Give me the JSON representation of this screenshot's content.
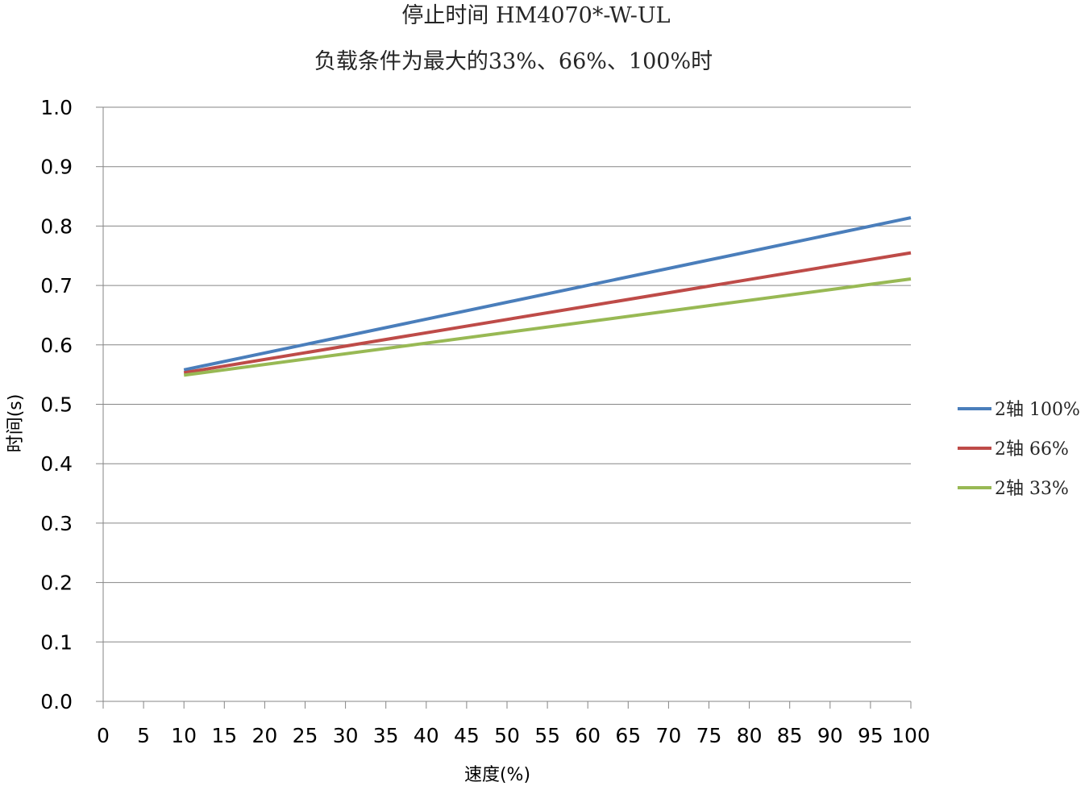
{
  "chart_data": {
    "type": "line",
    "title": "停止时间 HM4070*-W-UL",
    "subtitle": "负载条件为最大的33%、66%、100%时",
    "xlabel": "速度(%)",
    "ylabel": "时间(s)",
    "xlim": [
      0,
      100
    ],
    "ylim": [
      0.0,
      1.0
    ],
    "x_ticks": [
      "0",
      "5",
      "10",
      "15",
      "20",
      "25",
      "30",
      "35",
      "40",
      "45",
      "50",
      "55",
      "60",
      "65",
      "70",
      "75",
      "80",
      "85",
      "90",
      "95",
      "100"
    ],
    "y_ticks": [
      "0.0",
      "0.1",
      "0.2",
      "0.3",
      "0.4",
      "0.5",
      "0.6",
      "0.7",
      "0.8",
      "0.9",
      "1.0"
    ],
    "grid": true,
    "legend_position": "right",
    "x": [
      10,
      100
    ],
    "series": [
      {
        "name": "2轴 100%",
        "color": "#4a7ebb",
        "values": [
          0.558,
          0.814
        ]
      },
      {
        "name": "2轴 66%",
        "color": "#be4b48",
        "values": [
          0.553,
          0.755
        ]
      },
      {
        "name": "2轴 33%",
        "color": "#98b954",
        "values": [
          0.549,
          0.711
        ]
      }
    ]
  }
}
